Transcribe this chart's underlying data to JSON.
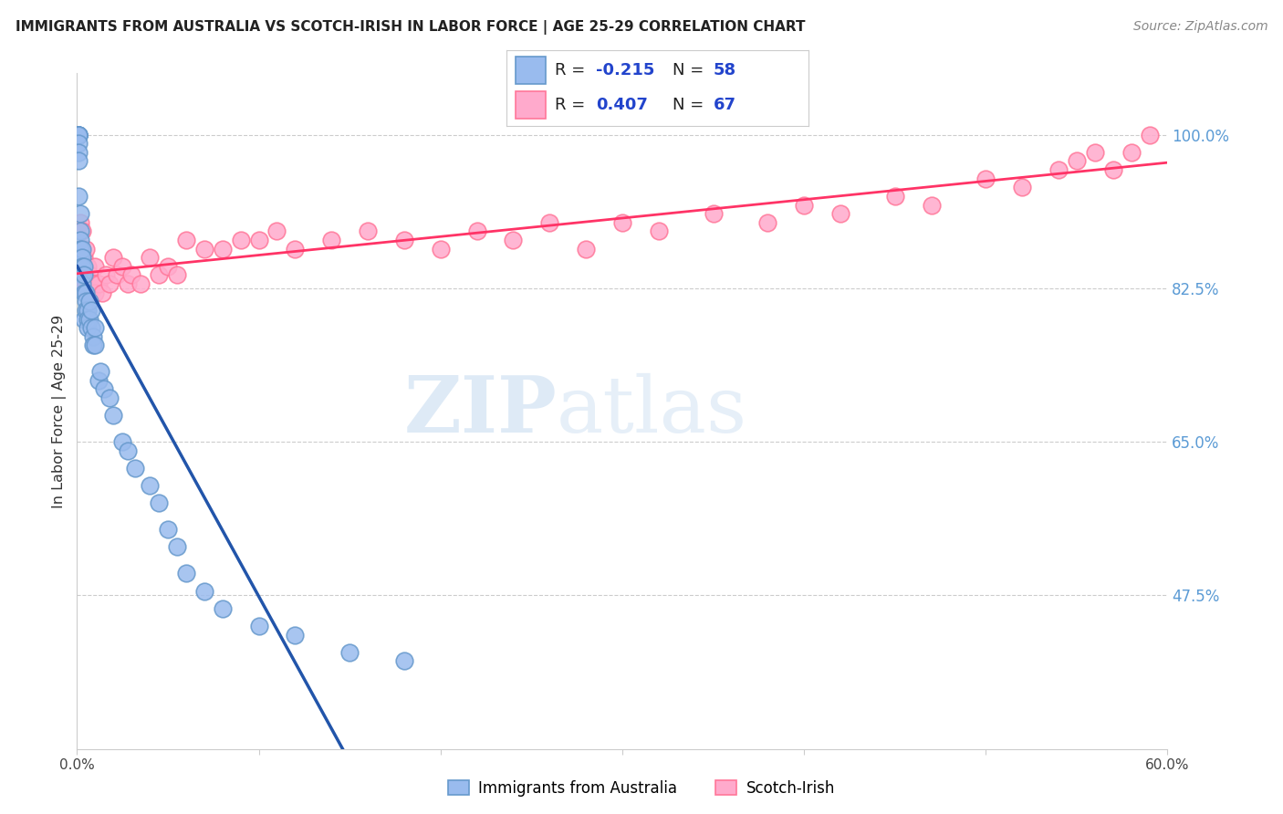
{
  "title": "IMMIGRANTS FROM AUSTRALIA VS SCOTCH-IRISH IN LABOR FORCE | AGE 25-29 CORRELATION CHART",
  "source": "Source: ZipAtlas.com",
  "ylabel": "In Labor Force | Age 25-29",
  "xlim": [
    0.0,
    0.6
  ],
  "ylim": [
    0.3,
    1.07
  ],
  "xticks": [
    0.0,
    0.1,
    0.2,
    0.3,
    0.4,
    0.5,
    0.6
  ],
  "xticklabels": [
    "0.0%",
    "",
    "",
    "",
    "",
    "",
    "60.0%"
  ],
  "yticks_right": [
    1.0,
    0.825,
    0.65,
    0.475
  ],
  "ytick_labels_right": [
    "100.0%",
    "82.5%",
    "65.0%",
    "47.5%"
  ],
  "gridline_y": [
    1.0,
    0.825,
    0.65,
    0.475
  ],
  "blue_fill": "#99BBEE",
  "blue_edge": "#6699CC",
  "pink_fill": "#FFAACC",
  "pink_edge": "#FF7799",
  "trend_blue_color": "#2255AA",
  "trend_pink_color": "#FF3366",
  "trend_dash_color": "#AAAAAA",
  "R_blue": -0.215,
  "N_blue": 58,
  "R_pink": 0.407,
  "N_pink": 67,
  "legend_label_blue": "Immigrants from Australia",
  "legend_label_pink": "Scotch-Irish",
  "blue_x": [
    0.001,
    0.001,
    0.001,
    0.001,
    0.001,
    0.001,
    0.001,
    0.001,
    0.001,
    0.001,
    0.002,
    0.002,
    0.002,
    0.002,
    0.002,
    0.002,
    0.003,
    0.003,
    0.003,
    0.003,
    0.003,
    0.004,
    0.004,
    0.004,
    0.004,
    0.005,
    0.005,
    0.005,
    0.006,
    0.006,
    0.006,
    0.007,
    0.007,
    0.008,
    0.008,
    0.009,
    0.009,
    0.01,
    0.01,
    0.012,
    0.013,
    0.015,
    0.018,
    0.02,
    0.025,
    0.028,
    0.032,
    0.04,
    0.045,
    0.05,
    0.055,
    0.06,
    0.07,
    0.08,
    0.1,
    0.12,
    0.15,
    0.18
  ],
  "blue_y": [
    1.0,
    1.0,
    1.0,
    1.0,
    1.0,
    1.0,
    0.99,
    0.98,
    0.97,
    0.93,
    0.91,
    0.89,
    0.88,
    0.87,
    0.86,
    0.85,
    0.87,
    0.86,
    0.85,
    0.84,
    0.83,
    0.85,
    0.84,
    0.82,
    0.79,
    0.82,
    0.81,
    0.8,
    0.8,
    0.79,
    0.78,
    0.81,
    0.79,
    0.8,
    0.78,
    0.77,
    0.76,
    0.78,
    0.76,
    0.72,
    0.73,
    0.71,
    0.7,
    0.68,
    0.65,
    0.64,
    0.62,
    0.6,
    0.58,
    0.55,
    0.53,
    0.5,
    0.48,
    0.46,
    0.44,
    0.43,
    0.41,
    0.4
  ],
  "pink_x": [
    0.001,
    0.001,
    0.001,
    0.002,
    0.002,
    0.003,
    0.003,
    0.003,
    0.004,
    0.004,
    0.005,
    0.005,
    0.005,
    0.006,
    0.006,
    0.007,
    0.007,
    0.008,
    0.008,
    0.009,
    0.01,
    0.01,
    0.012,
    0.014,
    0.016,
    0.018,
    0.02,
    0.022,
    0.025,
    0.028,
    0.03,
    0.035,
    0.04,
    0.045,
    0.05,
    0.055,
    0.06,
    0.07,
    0.08,
    0.09,
    0.1,
    0.11,
    0.12,
    0.14,
    0.16,
    0.18,
    0.2,
    0.22,
    0.24,
    0.26,
    0.28,
    0.3,
    0.32,
    0.35,
    0.38,
    0.4,
    0.42,
    0.45,
    0.47,
    0.5,
    0.52,
    0.54,
    0.55,
    0.56,
    0.57,
    0.58,
    0.59
  ],
  "pink_y": [
    0.86,
    0.85,
    0.84,
    0.9,
    0.87,
    0.89,
    0.85,
    0.83,
    0.86,
    0.84,
    0.87,
    0.83,
    0.82,
    0.85,
    0.82,
    0.84,
    0.82,
    0.83,
    0.82,
    0.83,
    0.85,
    0.82,
    0.83,
    0.82,
    0.84,
    0.83,
    0.86,
    0.84,
    0.85,
    0.83,
    0.84,
    0.83,
    0.86,
    0.84,
    0.85,
    0.84,
    0.88,
    0.87,
    0.87,
    0.88,
    0.88,
    0.89,
    0.87,
    0.88,
    0.89,
    0.88,
    0.87,
    0.89,
    0.88,
    0.9,
    0.87,
    0.9,
    0.89,
    0.91,
    0.9,
    0.92,
    0.91,
    0.93,
    0.92,
    0.95,
    0.94,
    0.96,
    0.97,
    0.98,
    0.96,
    0.98,
    1.0
  ],
  "watermark_zip": "ZIP",
  "watermark_atlas": "atlas",
  "right_label_color": "#5B9BD5",
  "background_color": "#FFFFFF",
  "title_fontsize": 11,
  "source_fontsize": 10,
  "scatter_size": 180,
  "legend_fontsize": 13
}
